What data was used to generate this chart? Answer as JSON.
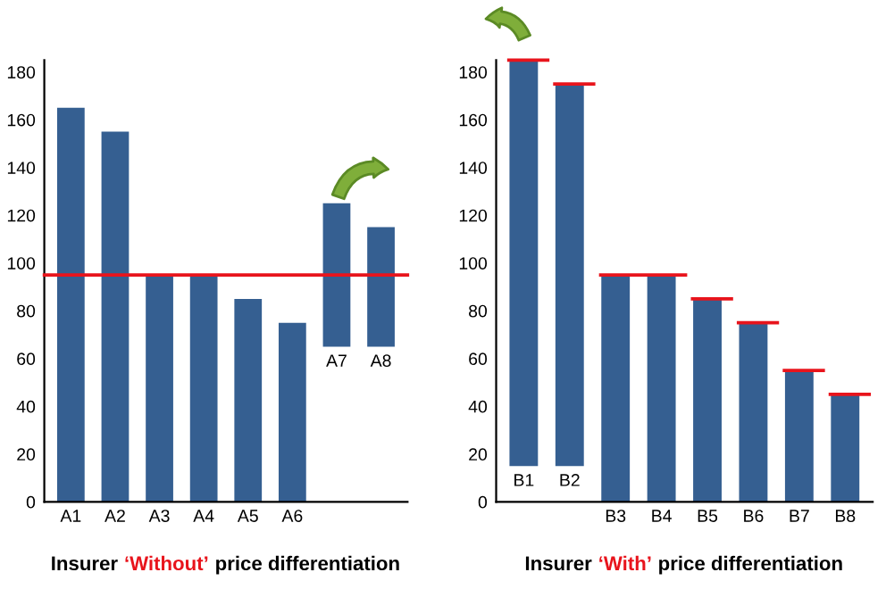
{
  "chart_data": [
    {
      "type": "bar",
      "title": "Insurer ‘Without’ price differentiation",
      "categories": [
        "A1",
        "A2",
        "A3",
        "A4",
        "A5",
        "A6",
        "A7",
        "A8"
      ],
      "values": [
        165,
        155,
        95,
        95,
        85,
        75,
        60,
        50
      ],
      "base": [
        0,
        0,
        0,
        0,
        0,
        0,
        65,
        65
      ],
      "color": "#355f91",
      "ylim": [
        0,
        185
      ],
      "yticks": [
        0,
        20,
        40,
        60,
        80,
        100,
        120,
        140,
        160,
        180
      ],
      "grid": false,
      "legend": false,
      "ref_lines": [
        {
          "axis": "y",
          "value": 95,
          "color": "#e8141c",
          "line_style": "solid"
        }
      ]
    },
    {
      "type": "bar",
      "title": "Insurer ‘With’ price differentiation",
      "categories": [
        "B1",
        "B2",
        "B3",
        "B4",
        "B5",
        "B6",
        "B7",
        "B8"
      ],
      "series": [
        {
          "type": "bar",
          "color": "#355f91",
          "values": [
            170,
            160,
            95,
            95,
            85,
            75,
            55,
            45
          ],
          "base": [
            15,
            15,
            0,
            0,
            0,
            0,
            0,
            0
          ]
        }
      ],
      "ref_lines": [
        {
          "axis": "y",
          "value": 185,
          "color": "#e8141c"
        },
        {
          "axis": "y",
          "value": 175,
          "color": "#e8141c"
        },
        {
          "axis": "y",
          "value": 95,
          "color": "#e8141c"
        },
        {
          "axis": "y",
          "value": 85,
          "color": "#e8141c"
        },
        {
          "axis": "y",
          "value": 75,
          "color": "#e8141c"
        },
        {
          "axis": "y",
          "value": 55,
          "color": "#e8141c"
        },
        {
          "axis": "y",
          "value": 45,
          "color": "#e8141c"
        }
      ],
      "ylim": [
        0,
        185
      ],
      "yticks": [
        0,
        20,
        40,
        60,
        80,
        100,
        120,
        140,
        160,
        180
      ],
      "grid": false,
      "legend": false
    }
  ]
}
